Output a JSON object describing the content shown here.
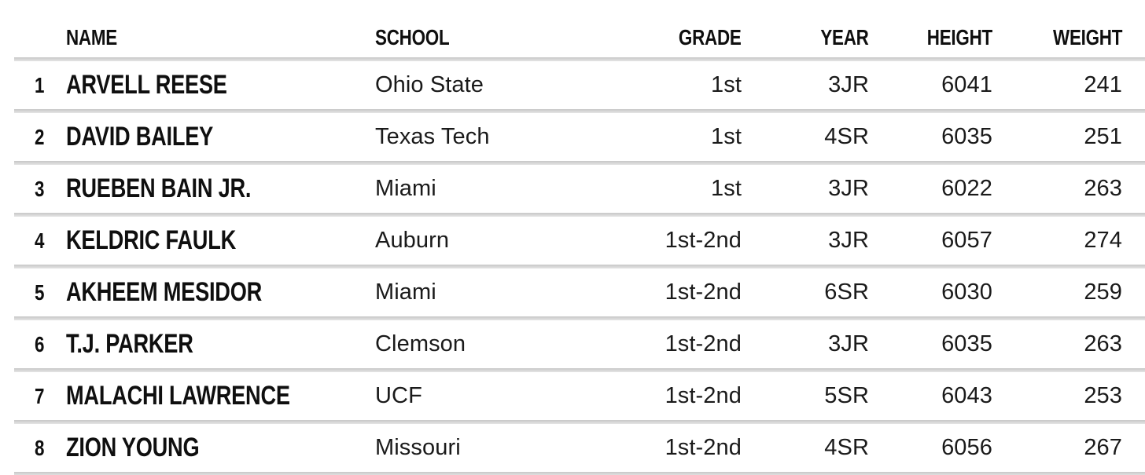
{
  "colors": {
    "background": "#ffffff",
    "text_bold": "#0f0f0f",
    "text_regular": "#1a1a1a",
    "divider": "#d2d2d2"
  },
  "chart_data": {
    "type": "table",
    "headers": [
      "NAME",
      "SCHOOL",
      "GRADE",
      "YEAR",
      "HEIGHT",
      "WEIGHT"
    ],
    "rows": [
      {
        "rank": "1",
        "name": "ARVELL REESE",
        "school": "Ohio State",
        "grade": "1st",
        "year": "3JR",
        "height": "6041",
        "weight": "241"
      },
      {
        "rank": "2",
        "name": "DAVID BAILEY",
        "school": "Texas Tech",
        "grade": "1st",
        "year": "4SR",
        "height": "6035",
        "weight": "251"
      },
      {
        "rank": "3",
        "name": "RUEBEN BAIN JR.",
        "school": "Miami",
        "grade": "1st",
        "year": "3JR",
        "height": "6022",
        "weight": "263"
      },
      {
        "rank": "4",
        "name": "KELDRIC FAULK",
        "school": "Auburn",
        "grade": "1st-2nd",
        "year": "3JR",
        "height": "6057",
        "weight": "274"
      },
      {
        "rank": "5",
        "name": "AKHEEM MESIDOR",
        "school": "Miami",
        "grade": "1st-2nd",
        "year": "6SR",
        "height": "6030",
        "weight": "259"
      },
      {
        "rank": "6",
        "name": "T.J. PARKER",
        "school": "Clemson",
        "grade": "1st-2nd",
        "year": "3JR",
        "height": "6035",
        "weight": "263"
      },
      {
        "rank": "7",
        "name": "MALACHI LAWRENCE",
        "school": "UCF",
        "grade": "1st-2nd",
        "year": "5SR",
        "height": "6043",
        "weight": "253"
      },
      {
        "rank": "8",
        "name": "ZION YOUNG",
        "school": "Missouri",
        "grade": "1st-2nd",
        "year": "4SR",
        "height": "6056",
        "weight": "267"
      }
    ]
  }
}
